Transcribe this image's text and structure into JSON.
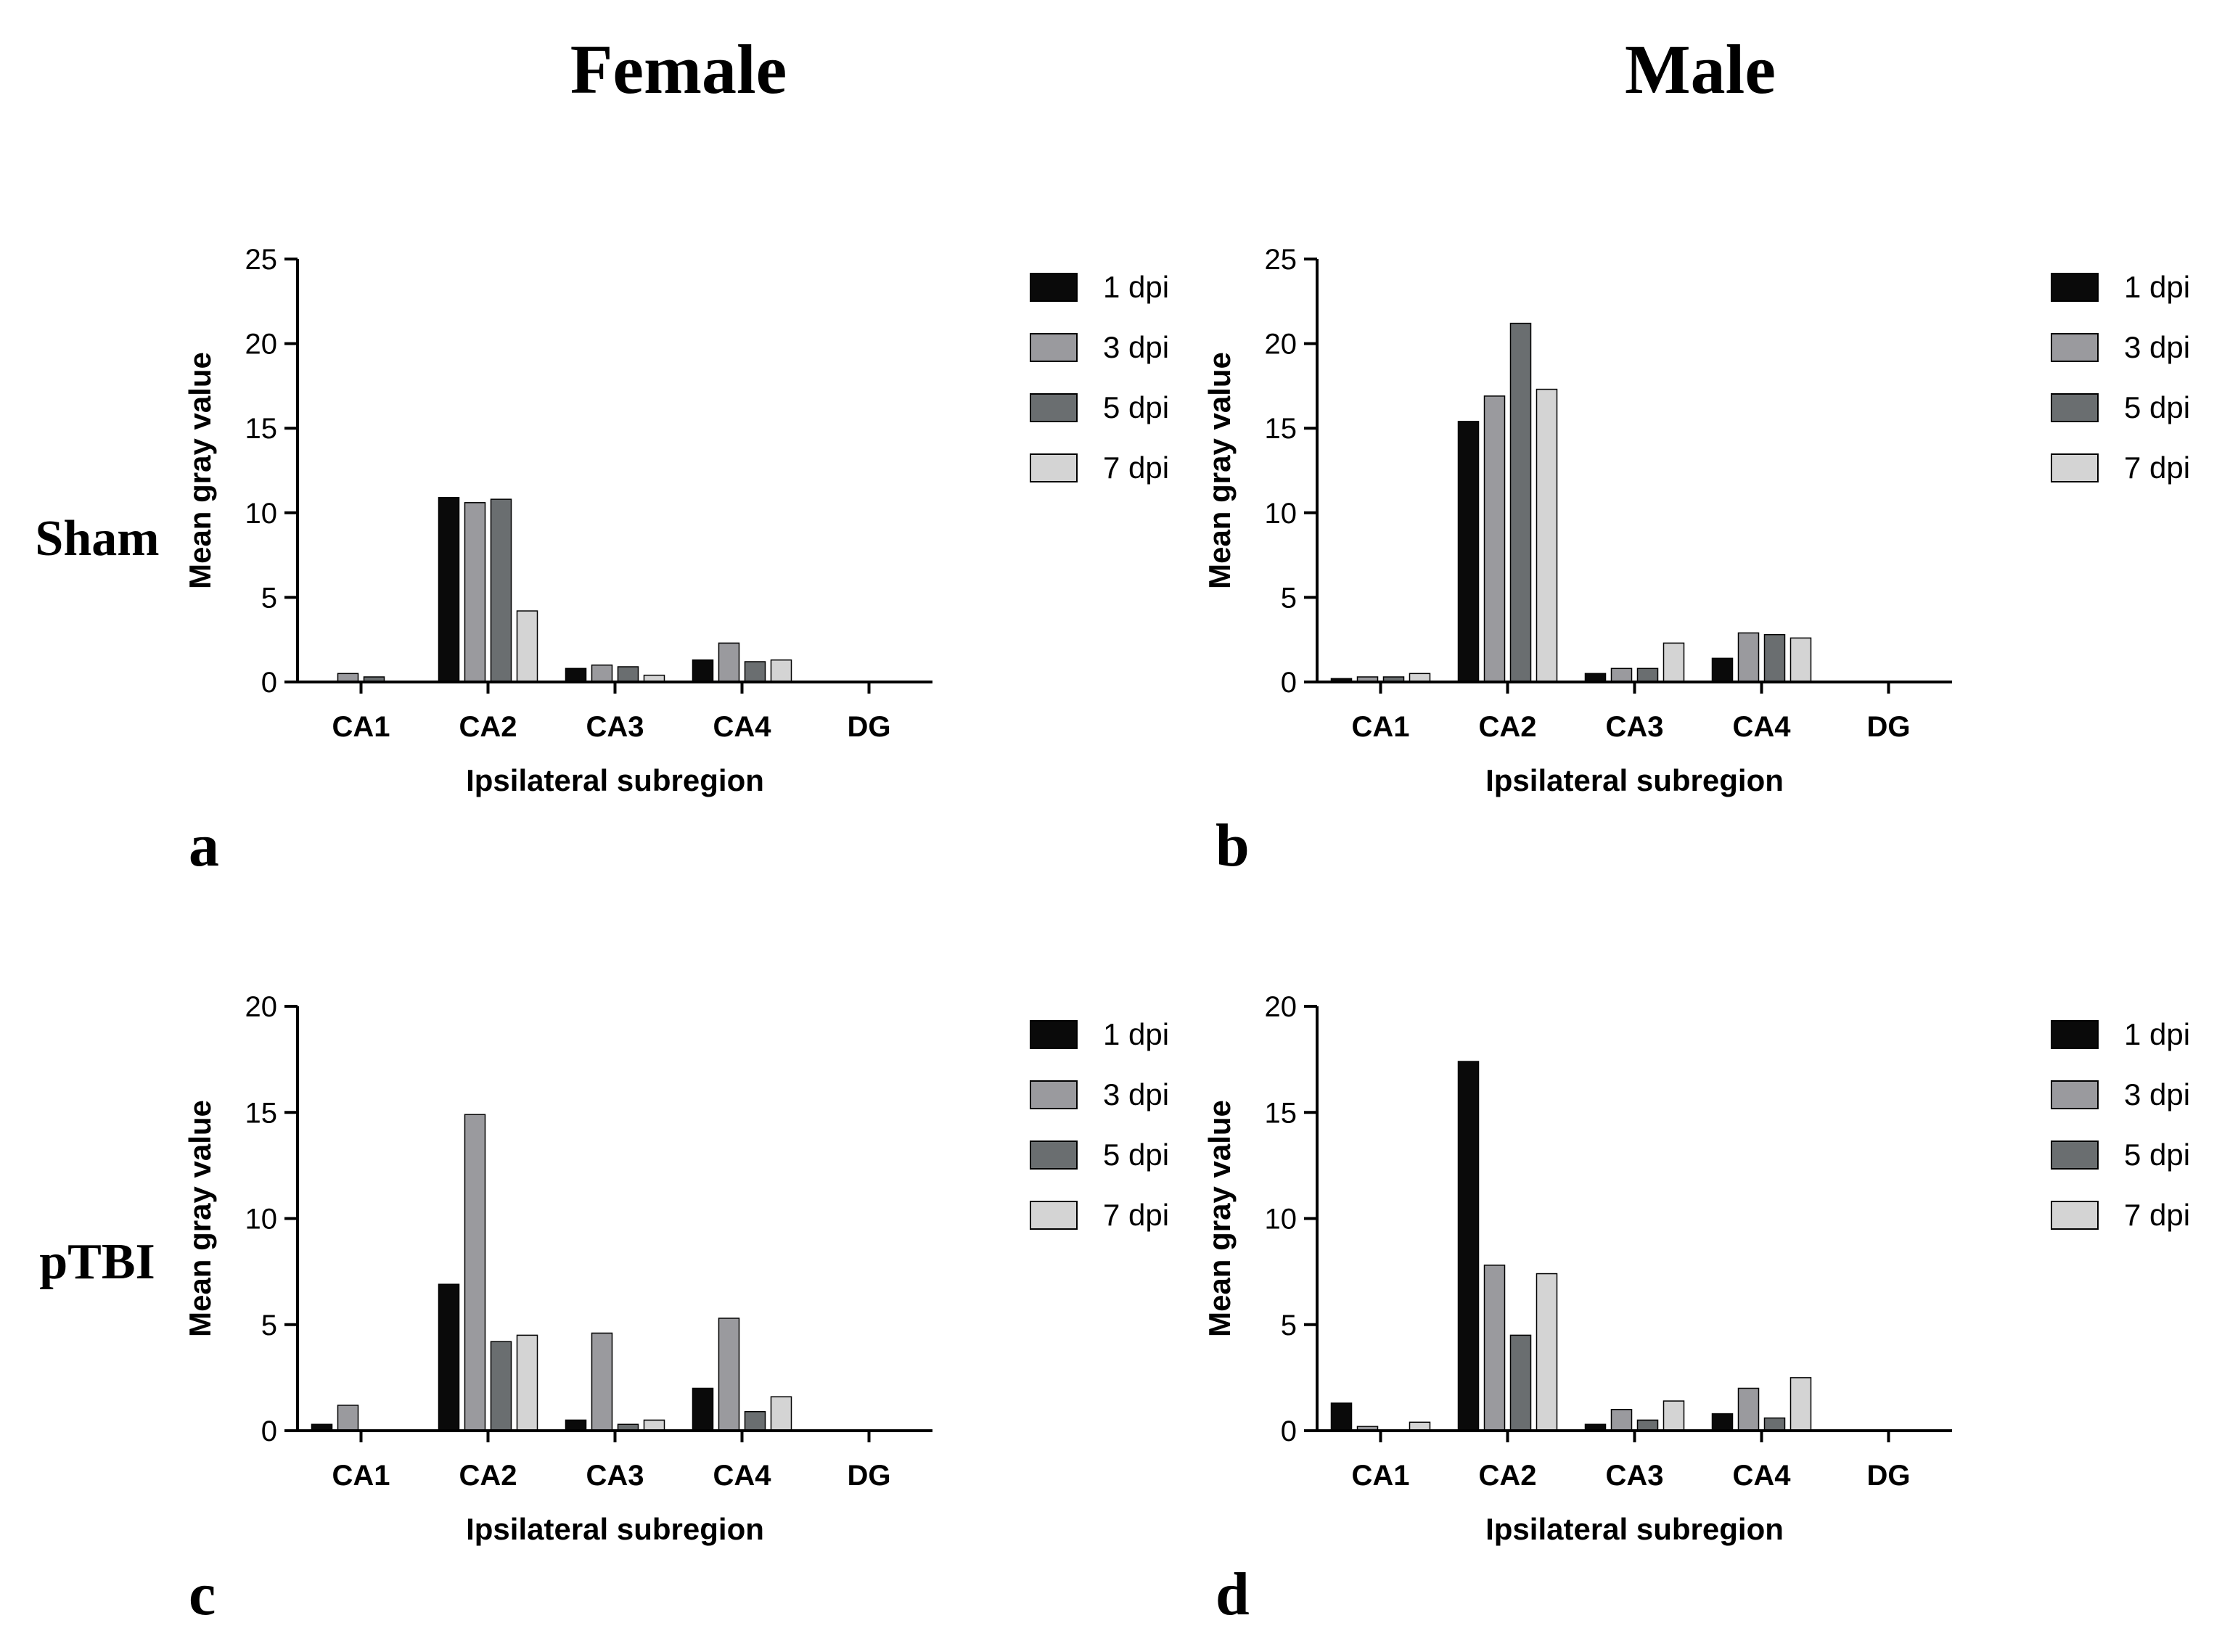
{
  "figure": {
    "col_headers": [
      "Female",
      "Male"
    ],
    "row_headers": [
      "Sham",
      "pTBI"
    ],
    "panel_letters": [
      "a",
      "b",
      "c",
      "d"
    ]
  },
  "colors": {
    "1 dpi": "#0a0a0a",
    "3 dpi": "#9a9a9e",
    "5 dpi": "#6a6e70",
    "7 dpi": "#d4d4d4",
    "axis": "#000000"
  },
  "chart_data": [
    {
      "panel": "a",
      "type": "bar",
      "title": "",
      "xlabel": "Ipsilateral subregion",
      "ylabel": "Mean gray value",
      "ylim": [
        0,
        25
      ],
      "yticks": [
        0,
        5,
        10,
        15,
        20,
        25
      ],
      "categories": [
        "CA1",
        "CA2",
        "CA3",
        "CA4",
        "DG"
      ],
      "series": [
        {
          "name": "1 dpi",
          "values": [
            0,
            10.9,
            0.8,
            1.3,
            0
          ]
        },
        {
          "name": "3 dpi",
          "values": [
            0.5,
            10.6,
            1.0,
            2.3,
            0
          ]
        },
        {
          "name": "5 dpi",
          "values": [
            0.3,
            10.8,
            0.9,
            1.2,
            0
          ]
        },
        {
          "name": "7 dpi",
          "values": [
            0,
            4.2,
            0.4,
            1.3,
            0
          ]
        }
      ],
      "legend": "right"
    },
    {
      "panel": "b",
      "type": "bar",
      "title": "",
      "xlabel": "Ipsilateral subregion",
      "ylabel": "Mean gray value",
      "ylim": [
        0,
        25
      ],
      "yticks": [
        0,
        5,
        10,
        15,
        20,
        25
      ],
      "categories": [
        "CA1",
        "CA2",
        "CA3",
        "CA4",
        "DG"
      ],
      "series": [
        {
          "name": "1 dpi",
          "values": [
            0.2,
            15.4,
            0.5,
            1.4,
            0
          ]
        },
        {
          "name": "3 dpi",
          "values": [
            0.3,
            16.9,
            0.8,
            2.9,
            0
          ]
        },
        {
          "name": "5 dpi",
          "values": [
            0.3,
            21.2,
            0.8,
            2.8,
            0
          ]
        },
        {
          "name": "7 dpi",
          "values": [
            0.5,
            17.3,
            2.3,
            2.6,
            0
          ]
        }
      ],
      "legend": "right"
    },
    {
      "panel": "c",
      "type": "bar",
      "title": "",
      "xlabel": "Ipsilateral subregion",
      "ylabel": "Mean gray value",
      "ylim": [
        0,
        20
      ],
      "yticks": [
        0,
        5,
        10,
        15,
        20
      ],
      "categories": [
        "CA1",
        "CA2",
        "CA3",
        "CA4",
        "DG"
      ],
      "series": [
        {
          "name": "1 dpi",
          "values": [
            0.3,
            6.9,
            0.5,
            2.0,
            0
          ]
        },
        {
          "name": "3 dpi",
          "values": [
            1.2,
            14.9,
            4.6,
            5.3,
            0
          ]
        },
        {
          "name": "5 dpi",
          "values": [
            0,
            4.2,
            0.3,
            0.9,
            0
          ]
        },
        {
          "name": "7 dpi",
          "values": [
            0,
            4.5,
            0.5,
            1.6,
            0
          ]
        }
      ],
      "legend": "right"
    },
    {
      "panel": "d",
      "type": "bar",
      "title": "",
      "xlabel": "Ipsilateral subregion",
      "ylabel": "Mean gray value",
      "ylim": [
        0,
        20
      ],
      "yticks": [
        0,
        5,
        10,
        15,
        20
      ],
      "categories": [
        "CA1",
        "CA2",
        "CA3",
        "CA4",
        "DG"
      ],
      "series": [
        {
          "name": "1 dpi",
          "values": [
            1.3,
            17.4,
            0.3,
            0.8,
            0
          ]
        },
        {
          "name": "3 dpi",
          "values": [
            0.2,
            7.8,
            1.0,
            2.0,
            0
          ]
        },
        {
          "name": "5 dpi",
          "values": [
            0,
            4.5,
            0.5,
            0.6,
            0
          ]
        },
        {
          "name": "7 dpi",
          "values": [
            0.4,
            7.4,
            1.4,
            2.5,
            0
          ]
        }
      ],
      "legend": "right"
    }
  ]
}
